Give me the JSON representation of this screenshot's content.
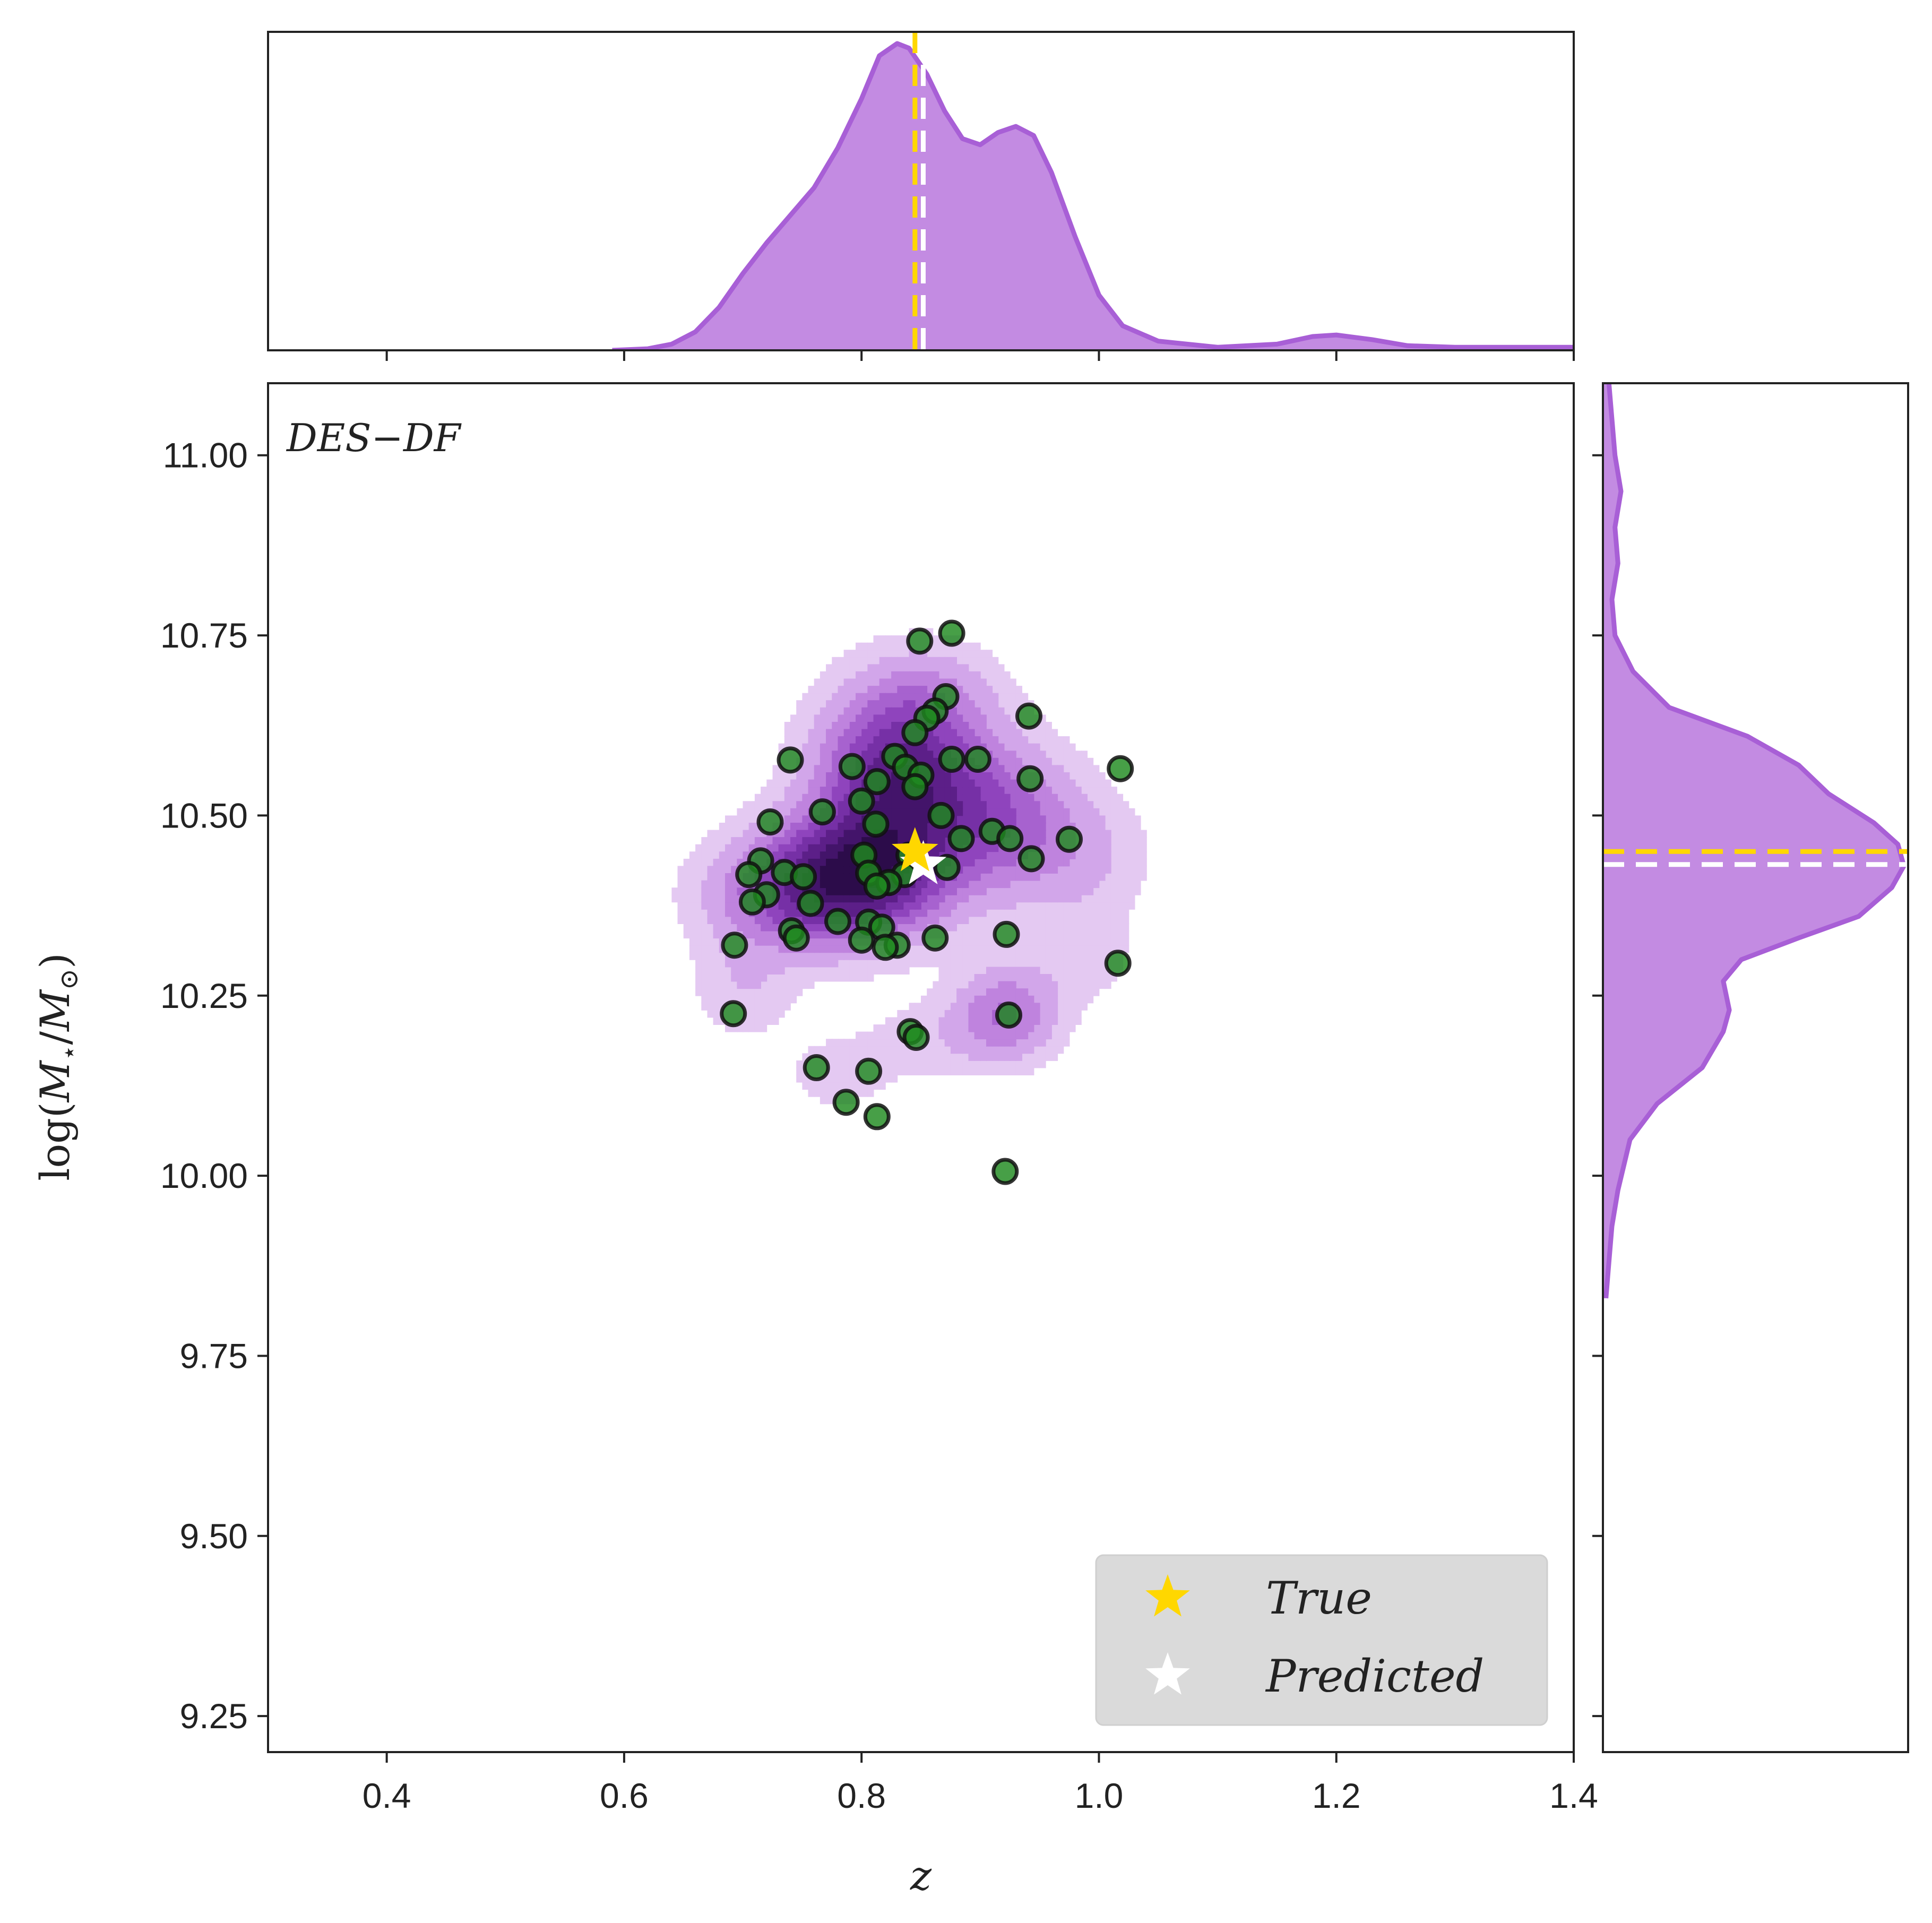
{
  "chart_data": {
    "type": "scatter",
    "panel_label": "DES−DF",
    "xlabel": "z",
    "ylabel_parts": {
      "prefix": "log(",
      "m1": "M",
      "sub1": "⋆",
      "slash": "/",
      "m2": "M",
      "sub2": "⊙",
      "suffix": ")"
    },
    "xlim": [
      0.3,
      1.4
    ],
    "ylim": [
      9.2,
      11.1
    ],
    "x_ticks": [
      0.4,
      0.6,
      0.8,
      1.0,
      1.2,
      1.4
    ],
    "x_tick_labels": [
      "0.4",
      "0.6",
      "0.8",
      "1.0",
      "1.2",
      "1.4"
    ],
    "y_ticks": [
      9.25,
      9.5,
      9.75,
      10.0,
      10.25,
      10.5,
      10.75,
      11.0
    ],
    "y_tick_labels": [
      "9.25",
      "9.50",
      "9.75",
      "10.00",
      "10.25",
      "10.50",
      "10.75",
      "11.00"
    ],
    "grid": false,
    "colors": {
      "kde_fill": "#c085e0",
      "kde_line": "#a85fd6",
      "true": "#ffd700",
      "predicted": "#ffffff",
      "points": "#1e8a1e",
      "points_edge": "#111111",
      "contour_levels": [
        "#e4c9f2",
        "#d2a6ea",
        "#bf83de",
        "#a762cf",
        "#8f44bd",
        "#7630a6",
        "#5c1f88",
        "#43146a",
        "#2c0c4a"
      ]
    },
    "true_value": {
      "x": 0.845,
      "y": 10.45
    },
    "predicted_value": {
      "x": 0.852,
      "y": 10.432
    },
    "legend": {
      "position": "lower-right",
      "entries": [
        "True",
        "Predicted"
      ]
    },
    "points": [
      [
        0.849,
        10.742
      ],
      [
        0.876,
        10.753
      ],
      [
        0.871,
        10.665
      ],
      [
        0.862,
        10.645
      ],
      [
        0.855,
        10.635
      ],
      [
        0.845,
        10.615
      ],
      [
        0.941,
        10.638
      ],
      [
        0.74,
        10.577
      ],
      [
        0.828,
        10.582
      ],
      [
        0.876,
        10.578
      ],
      [
        0.898,
        10.578
      ],
      [
        0.792,
        10.568
      ],
      [
        0.837,
        10.567
      ],
      [
        0.85,
        10.556
      ],
      [
        1.018,
        10.565
      ],
      [
        0.813,
        10.547
      ],
      [
        0.845,
        10.54
      ],
      [
        0.942,
        10.551
      ],
      [
        0.8,
        10.52
      ],
      [
        0.767,
        10.505
      ],
      [
        0.867,
        10.5
      ],
      [
        0.723,
        10.491
      ],
      [
        0.812,
        10.488
      ],
      [
        0.91,
        10.478
      ],
      [
        0.925,
        10.468
      ],
      [
        0.975,
        10.467
      ],
      [
        0.884,
        10.468
      ],
      [
        0.84,
        10.445
      ],
      [
        0.802,
        10.445
      ],
      [
        0.943,
        10.44
      ],
      [
        0.715,
        10.437
      ],
      [
        0.735,
        10.421
      ],
      [
        0.751,
        10.415
      ],
      [
        0.806,
        10.42
      ],
      [
        0.836,
        10.418
      ],
      [
        0.872,
        10.428
      ],
      [
        0.705,
        10.418
      ],
      [
        0.823,
        10.407
      ],
      [
        0.813,
        10.402
      ],
      [
        0.72,
        10.39
      ],
      [
        0.708,
        10.38
      ],
      [
        0.757,
        10.378
      ],
      [
        0.78,
        10.353
      ],
      [
        0.806,
        10.352
      ],
      [
        0.817,
        10.345
      ],
      [
        0.741,
        10.34
      ],
      [
        0.745,
        10.33
      ],
      [
        0.8,
        10.327
      ],
      [
        0.83,
        10.32
      ],
      [
        0.82,
        10.317
      ],
      [
        0.862,
        10.33
      ],
      [
        0.922,
        10.335
      ],
      [
        0.693,
        10.32
      ],
      [
        1.016,
        10.295
      ],
      [
        0.924,
        10.223
      ],
      [
        0.692,
        10.225
      ],
      [
        0.841,
        10.2
      ],
      [
        0.846,
        10.192
      ],
      [
        0.762,
        10.15
      ],
      [
        0.806,
        10.145
      ],
      [
        0.787,
        10.102
      ],
      [
        0.813,
        10.082
      ],
      [
        0.921,
        10.006
      ]
    ],
    "kde_blobs": [
      {
        "x": 0.83,
        "y": 10.56,
        "sx": 0.045,
        "sy": 0.08,
        "w": 1.0
      },
      {
        "x": 0.8,
        "y": 10.42,
        "sx": 0.05,
        "sy": 0.06,
        "w": 1.05
      },
      {
        "x": 0.74,
        "y": 10.39,
        "sx": 0.05,
        "sy": 0.055,
        "w": 0.55
      },
      {
        "x": 0.91,
        "y": 10.5,
        "sx": 0.05,
        "sy": 0.07,
        "w": 0.55
      },
      {
        "x": 0.922,
        "y": 10.225,
        "sx": 0.03,
        "sy": 0.045,
        "w": 0.5
      },
      {
        "x": 0.78,
        "y": 10.14,
        "sx": 0.035,
        "sy": 0.04,
        "w": 0.14
      },
      {
        "x": 0.865,
        "y": 10.67,
        "sx": 0.04,
        "sy": 0.05,
        "w": 0.2
      },
      {
        "x": 0.98,
        "y": 10.44,
        "sx": 0.045,
        "sy": 0.06,
        "w": 0.2
      },
      {
        "x": 0.7,
        "y": 10.26,
        "sx": 0.03,
        "sy": 0.05,
        "w": 0.18
      },
      {
        "x": 0.86,
        "y": 10.19,
        "sx": 0.04,
        "sy": 0.04,
        "w": 0.14
      },
      {
        "x": 0.99,
        "y": 10.3,
        "sx": 0.035,
        "sy": 0.05,
        "w": 0.12
      }
    ],
    "marginal_x": [
      [
        0.59,
        0.0
      ],
      [
        0.62,
        0.005
      ],
      [
        0.64,
        0.02
      ],
      [
        0.66,
        0.06
      ],
      [
        0.68,
        0.14
      ],
      [
        0.7,
        0.25
      ],
      [
        0.72,
        0.35
      ],
      [
        0.74,
        0.44
      ],
      [
        0.76,
        0.53
      ],
      [
        0.78,
        0.66
      ],
      [
        0.8,
        0.82
      ],
      [
        0.815,
        0.96
      ],
      [
        0.83,
        1.0
      ],
      [
        0.84,
        0.985
      ],
      [
        0.855,
        0.9
      ],
      [
        0.87,
        0.78
      ],
      [
        0.885,
        0.69
      ],
      [
        0.9,
        0.67
      ],
      [
        0.915,
        0.71
      ],
      [
        0.93,
        0.73
      ],
      [
        0.945,
        0.7
      ],
      [
        0.96,
        0.58
      ],
      [
        0.98,
        0.37
      ],
      [
        1.0,
        0.18
      ],
      [
        1.02,
        0.08
      ],
      [
        1.05,
        0.03
      ],
      [
        1.1,
        0.01
      ],
      [
        1.15,
        0.02
      ],
      [
        1.18,
        0.045
      ],
      [
        1.2,
        0.05
      ],
      [
        1.23,
        0.035
      ],
      [
        1.26,
        0.015
      ],
      [
        1.3,
        0.01
      ],
      [
        1.4,
        0.01
      ]
    ],
    "marginal_y": [
      [
        9.83,
        0.01
      ],
      [
        9.88,
        0.02
      ],
      [
        9.93,
        0.03
      ],
      [
        9.98,
        0.05
      ],
      [
        10.05,
        0.09
      ],
      [
        10.1,
        0.18
      ],
      [
        10.15,
        0.33
      ],
      [
        10.2,
        0.4
      ],
      [
        10.23,
        0.42
      ],
      [
        10.27,
        0.4
      ],
      [
        10.3,
        0.46
      ],
      [
        10.33,
        0.65
      ],
      [
        10.36,
        0.85
      ],
      [
        10.4,
        0.96
      ],
      [
        10.43,
        1.0
      ],
      [
        10.46,
        0.98
      ],
      [
        10.49,
        0.9
      ],
      [
        10.53,
        0.75
      ],
      [
        10.57,
        0.65
      ],
      [
        10.61,
        0.48
      ],
      [
        10.65,
        0.22
      ],
      [
        10.7,
        0.1
      ],
      [
        10.75,
        0.04
      ],
      [
        10.8,
        0.03
      ],
      [
        10.85,
        0.05
      ],
      [
        10.9,
        0.04
      ],
      [
        10.95,
        0.06
      ],
      [
        11.0,
        0.04
      ],
      [
        11.05,
        0.03
      ],
      [
        11.1,
        0.02
      ]
    ]
  }
}
